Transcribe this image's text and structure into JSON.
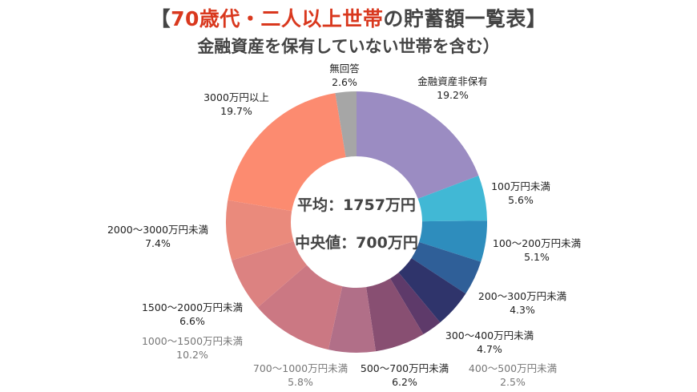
{
  "title": {
    "open": "【",
    "highlight": "70歳代・二人以上世帯",
    "rest": "の貯蓄額一覧表】",
    "highlight_color": "#d9381e"
  },
  "subtitle": "金融資産を保有していない世帯を含む）",
  "chart_data": {
    "type": "donut",
    "center_labels": [
      "平均：1757万円",
      "中央値：700万円"
    ],
    "slices": [
      {
        "label": "金融資産非保有",
        "value": 19.2,
        "value_label": "19.2%",
        "color": "#9b8cc2",
        "label_color": "#222"
      },
      {
        "label": "100万円未満",
        "value": 5.6,
        "value_label": "5.6%",
        "color": "#41b8d5",
        "label_color": "#222"
      },
      {
        "label": "100～200万円未満",
        "value": 5.1,
        "value_label": "5.1%",
        "color": "#2e8dbd",
        "label_color": "#222"
      },
      {
        "label": "200～300万円未満",
        "value": 4.3,
        "value_label": "4.3%",
        "color": "#2f5f98",
        "label_color": "#222"
      },
      {
        "label": "300～400万円未満",
        "value": 4.7,
        "value_label": "4.7%",
        "color": "#2f346b",
        "label_color": "#222"
      },
      {
        "label": "400～500万円未満",
        "value": 2.5,
        "value_label": "2.5%",
        "color": "#5e3a6a",
        "label_color": "#777"
      },
      {
        "label": "500～700万円未満",
        "value": 6.2,
        "value_label": "6.2%",
        "color": "#884f72",
        "label_color": "#222"
      },
      {
        "label": "700～1000万円未満",
        "value": 5.8,
        "value_label": "5.8%",
        "color": "#b16f88",
        "label_color": "#777"
      },
      {
        "label": "1000～1500万円未満",
        "value": 10.2,
        "value_label": "10.2%",
        "color": "#cb7883",
        "label_color": "#777"
      },
      {
        "label": "1500～2000万円未満",
        "value": 6.6,
        "value_label": "6.6%",
        "color": "#dc8281",
        "label_color": "#222"
      },
      {
        "label": "2000～3000万円未満",
        "value": 7.4,
        "value_label": "7.4%",
        "color": "#ea8a7c",
        "label_color": "#222"
      },
      {
        "label": "3000万円以上",
        "value": 19.7,
        "value_label": "19.7%",
        "color": "#fc8b70",
        "label_color": "#222"
      },
      {
        "label": "無回答",
        "value": 2.6,
        "value_label": "2.6%",
        "color": "#a6a6a6",
        "label_color": "#222"
      }
    ]
  }
}
